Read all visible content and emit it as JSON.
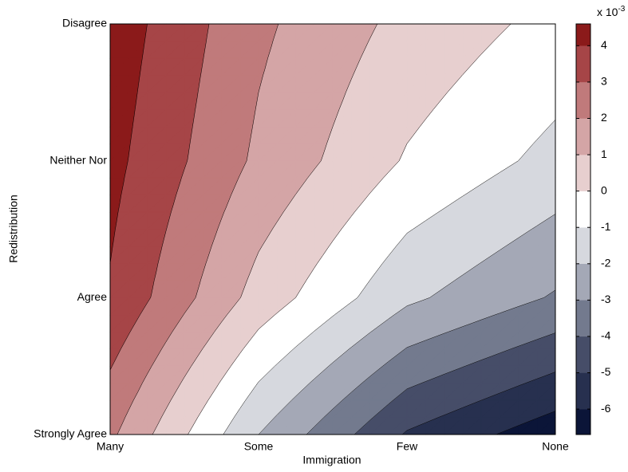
{
  "chart_data": {
    "type": "contourf",
    "x_label": "Immigration",
    "y_label": "Redistribution",
    "categories": [
      "Many",
      "Some",
      "Few",
      "None"
    ],
    "y_categories": [
      "Strongly Agree",
      "Agree",
      "Neither Nor",
      "Disagree"
    ],
    "z": [
      [
        2.2,
        -2.0,
        -5.1,
        -6.6
      ],
      [
        3.9,
        0.6,
        -1.8,
        -3.1
      ],
      [
        4.3,
        1.8,
        -0.1,
        -1.3
      ],
      [
        4.6,
        2.2,
        0.7,
        -0.3
      ]
    ],
    "levels": [
      -6,
      -5,
      -4,
      -3,
      -2,
      -1,
      0,
      1,
      2,
      3,
      4
    ],
    "colors": [
      "#0b1538",
      "#27304f",
      "#464d68",
      "#737a8e",
      "#a4a8b6",
      "#d6d8de",
      "#ffffff",
      "#e7cfcf",
      "#d4a5a6",
      "#c07a7b",
      "#a64547",
      "#8b1a1a"
    ],
    "zlim": [
      -6.7,
      4.6
    ],
    "zticks": [
      -6,
      -5,
      -4,
      -3,
      -2,
      -1,
      0,
      1,
      2,
      3,
      4
    ],
    "colorbar_label": "x 10",
    "colorbar_exponent": "-3"
  }
}
